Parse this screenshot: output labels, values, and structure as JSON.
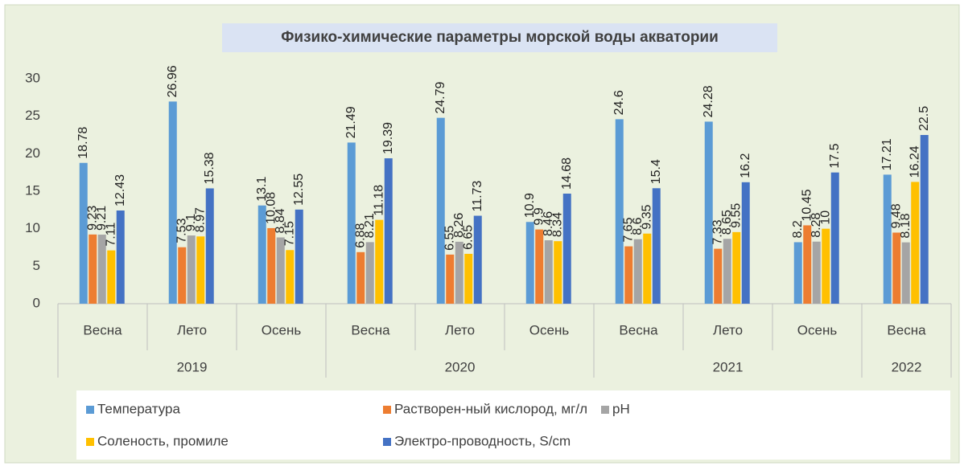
{
  "chart_data": {
    "type": "bar",
    "title": "Физико-химические параметры морской воды акватории",
    "groups": [
      {
        "name": "2019",
        "categories": [
          "Весна",
          "Лето",
          "Осень"
        ]
      },
      {
        "name": "2020",
        "categories": [
          "Весна",
          "Лето",
          "Осень"
        ]
      },
      {
        "name": "2021",
        "categories": [
          "Весна",
          "Лето",
          "Осень"
        ]
      },
      {
        "name": "2022",
        "categories": [
          "Весна"
        ]
      }
    ],
    "series": [
      {
        "name": "Температура",
        "color": "#5b9bd5",
        "values": [
          18.78,
          26.96,
          13.1,
          21.49,
          24.79,
          10.9,
          24.6,
          24.28,
          8.2,
          17.21
        ]
      },
      {
        "name": "Растворен-ный кислород, мг/л",
        "color": "#ed7d31",
        "values": [
          9.23,
          7.53,
          10.08,
          6.88,
          6.55,
          9.9,
          7.65,
          7.33,
          10.45,
          9.48
        ]
      },
      {
        "name": "pH",
        "color": "#a5a5a5",
        "values": [
          9.21,
          9.1,
          8.84,
          8.21,
          8.26,
          8.46,
          8.6,
          8.65,
          8.28,
          8.18
        ]
      },
      {
        "name": "Соленость, промиле",
        "color": "#ffc000",
        "values": [
          7.11,
          8.97,
          7.15,
          11.18,
          6.65,
          8.34,
          9.35,
          9.55,
          10,
          16.24
        ]
      },
      {
        "name": "Электро-проводность, S/cm",
        "color": "#4472c4",
        "values": [
          12.43,
          15.38,
          12.55,
          19.39,
          11.73,
          14.68,
          15.4,
          16.2,
          17.5,
          22.5
        ]
      }
    ],
    "ylim": [
      0,
      30
    ],
    "yticks": [
      0,
      5,
      10,
      15,
      20,
      25,
      30
    ],
    "grid": false
  }
}
